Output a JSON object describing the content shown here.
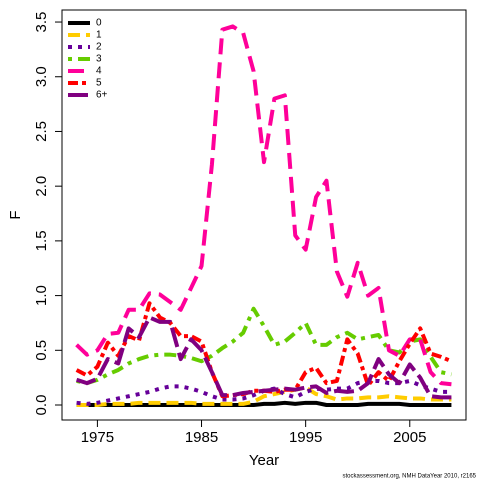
{
  "chart_data": {
    "type": "line",
    "xlabel": "Year",
    "ylabel": "F",
    "footer": "stockassessment.org, NMH DataYear 2010, r2165",
    "x": [
      1973,
      1974,
      1975,
      1976,
      1977,
      1978,
      1979,
      1980,
      1981,
      1982,
      1983,
      1984,
      1985,
      1986,
      1987,
      1988,
      1989,
      1990,
      1991,
      1992,
      1993,
      1994,
      1995,
      1996,
      1997,
      1998,
      1999,
      2000,
      2001,
      2002,
      2003,
      2004,
      2005,
      2006,
      2007,
      2008,
      2009
    ],
    "xlim": [
      1971.6,
      2010.4
    ],
    "xticks": [
      1975,
      1985,
      1995,
      2005
    ],
    "ylim": [
      -0.137,
      3.61
    ],
    "yticks": [
      {
        "value": 0,
        "label": "0.0"
      },
      0.5,
      {
        "value": 1,
        "label": "1.0"
      },
      1.5,
      {
        "value": 2,
        "label": "2.0"
      },
      2.5,
      {
        "value": 3,
        "label": "3.0"
      },
      3.5
    ],
    "legend": "top-left",
    "series": [
      {
        "name": "0",
        "color": "#000000",
        "values": [
          0,
          0,
          0,
          0,
          0,
          0,
          0,
          0,
          0,
          0,
          0,
          0,
          0,
          0,
          0,
          0,
          0,
          0,
          0.01,
          0.01,
          0.02,
          0.01,
          0.02,
          0.02,
          0,
          0,
          0,
          0,
          0.01,
          0.01,
          0.01,
          0.01,
          0,
          0,
          0,
          0,
          0
        ]
      },
      {
        "name": "1",
        "color": "#ffcc00",
        "values": [
          0,
          0,
          0,
          0.01,
          0.01,
          0.01,
          0.02,
          0.02,
          0.02,
          0.02,
          0.02,
          0.02,
          0.01,
          0.01,
          0.01,
          0.01,
          0.01,
          0.03,
          0.08,
          0.1,
          0.12,
          0.14,
          0.16,
          0.1,
          0.08,
          0.05,
          0.06,
          0.06,
          0.07,
          0.07,
          0.08,
          0.07,
          0.06,
          0.06,
          0.05,
          0.05,
          0.05
        ]
      },
      {
        "name": "2",
        "color": "#660099",
        "values": [
          0.02,
          0.01,
          0.02,
          0.04,
          0.06,
          0.08,
          0.1,
          0.12,
          0.15,
          0.17,
          0.17,
          0.15,
          0.12,
          0.08,
          0.05,
          0.05,
          0.06,
          0.09,
          0.13,
          0.15,
          0.1,
          0.07,
          0.12,
          0.15,
          0.14,
          0.15,
          0.15,
          0.2,
          0.22,
          0.22,
          0.2,
          0.2,
          0.22,
          0.18,
          0.15,
          0.12,
          0.12
        ]
      },
      {
        "name": "3",
        "color": "#66cc00",
        "values": [
          0.22,
          0.2,
          0.23,
          0.28,
          0.32,
          0.38,
          0.42,
          0.45,
          0.46,
          0.46,
          0.45,
          0.43,
          0.4,
          0.45,
          0.52,
          0.58,
          0.66,
          0.88,
          0.72,
          0.55,
          0.58,
          0.66,
          0.75,
          0.55,
          0.55,
          0.62,
          0.66,
          0.6,
          0.62,
          0.64,
          0.5,
          0.48,
          0.58,
          0.6,
          0.44,
          0.3,
          0.28
        ]
      },
      {
        "name": "4",
        "color": "#ff0099",
        "values": [
          0.55,
          0.46,
          0.5,
          0.65,
          0.66,
          0.87,
          0.87,
          1.02,
          1.01,
          0.94,
          0.87,
          1.07,
          1.27,
          2.2,
          3.43,
          3.46,
          3.4,
          3.05,
          2.22,
          2.8,
          2.83,
          1.55,
          1.42,
          1.9,
          2.05,
          1.22,
          0.99,
          1.3,
          1.0,
          1.07,
          0.5,
          0.45,
          0.6,
          0.6,
          0.3,
          0.2,
          0.19
        ]
      },
      {
        "name": "5",
        "color": "#ff0000",
        "values": [
          0.32,
          0.27,
          0.35,
          0.57,
          0.45,
          0.63,
          0.59,
          0.93,
          0.8,
          0.75,
          0.63,
          0.63,
          0.58,
          0.3,
          0.08,
          0.09,
          0.1,
          0.13,
          0.13,
          0.12,
          0.14,
          0.14,
          0.3,
          0.34,
          0.2,
          0.22,
          0.6,
          0.47,
          0.18,
          0.3,
          0.22,
          0.4,
          0.56,
          0.7,
          0.47,
          0.44,
          0.4
        ]
      },
      {
        "name": "6+",
        "color": "#800080",
        "values": [
          0.23,
          0.2,
          0.24,
          0.42,
          0.38,
          0.7,
          0.62,
          0.8,
          0.76,
          0.76,
          0.42,
          0.6,
          0.5,
          0.3,
          0.09,
          0.09,
          0.11,
          0.12,
          0.13,
          0.14,
          0.15,
          0.14,
          0.16,
          0.17,
          0.11,
          0.13,
          0.12,
          0.13,
          0.2,
          0.42,
          0.28,
          0.2,
          0.37,
          0.25,
          0.08,
          0.07,
          0.07
        ]
      }
    ]
  }
}
